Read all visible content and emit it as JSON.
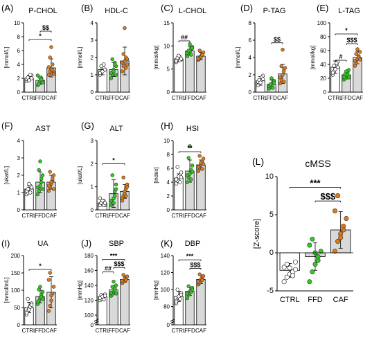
{
  "figure": {
    "background": "#ffffff",
    "group_colors": {
      "CTRL": "#ffffff",
      "FFD": "#2ecc1f",
      "CAF": "#e07b18"
    },
    "bar_fills": {
      "CTRL": "#ffffff",
      "FFD": "#d9d9d9",
      "CAF": "#d9d9d9"
    }
  },
  "chart_data": [
    {
      "type": "bar",
      "panel": "(A)",
      "title": "P-CHOL",
      "ylabel": "[mmol/L]",
      "ylim": [
        0,
        10
      ],
      "yticks": [
        "0",
        "2",
        "4",
        "6",
        "8",
        "10"
      ],
      "categories": [
        "CTRL",
        "FFD",
        "CAF"
      ],
      "values": [
        2.0,
        1.7,
        3.5
      ],
      "error": [
        0.4,
        0.6,
        1.3
      ],
      "points": [
        [
          1.6,
          1.8,
          2.0,
          2.2,
          2.4,
          1.9,
          2.1,
          1.7,
          2.5,
          2.0
        ],
        [
          1.0,
          1.3,
          1.6,
          2.0,
          1.5,
          2.4,
          1.2,
          2.1,
          1.8,
          1.4
        ],
        [
          2.5,
          3.0,
          3.3,
          4.0,
          2.8,
          3.6,
          5.0,
          6.5,
          3.2,
          2.6
        ]
      ],
      "brackets": [
        {
          "from": "CTRL",
          "to": "CAF",
          "level": 7.6,
          "label": "*"
        },
        {
          "from": "FFD",
          "to": "CAF",
          "level": 8.8,
          "label": "$$"
        }
      ]
    },
    {
      "type": "bar",
      "panel": "(B)",
      "title": "HDL-C",
      "ylabel": "[mmol/L]",
      "ylim": [
        0,
        4
      ],
      "yticks": [
        "0",
        "1",
        "2",
        "3",
        "4"
      ],
      "categories": [
        "CTRL",
        "FFD",
        "CAF"
      ],
      "values": [
        1.3,
        1.3,
        1.8
      ],
      "error": [
        0.3,
        0.4,
        0.8
      ],
      "points": [
        [
          1.0,
          1.2,
          1.4,
          1.6,
          1.3,
          1.1,
          1.5,
          1.2,
          1.4,
          1.3
        ],
        [
          0.8,
          1.0,
          1.3,
          1.7,
          1.5,
          1.1,
          1.9,
          1.2,
          1.6,
          1.0
        ],
        [
          1.2,
          1.5,
          1.8,
          2.0,
          1.6,
          1.7,
          2.2,
          3.7,
          1.4,
          1.9
        ]
      ],
      "brackets": []
    },
    {
      "type": "bar",
      "panel": "(C)",
      "title": "L-CHOL",
      "ylabel": "[mmol/kg]",
      "ylim": [
        0,
        15
      ],
      "yticks": [
        "0",
        "5",
        "10",
        "15"
      ],
      "categories": [
        "CTRL",
        "FFD",
        "CAF"
      ],
      "values": [
        7.2,
        8.9,
        7.8
      ],
      "error": [
        0.6,
        0.9,
        0.8
      ],
      "points": [
        [
          6.5,
          7.0,
          7.3,
          7.6,
          7.1,
          6.8,
          7.4,
          7.9,
          6.9,
          7.2
        ],
        [
          7.8,
          8.2,
          8.8,
          9.3,
          9.8,
          8.5,
          9.0,
          10.4,
          8.1,
          9.5
        ],
        [
          7.0,
          7.4,
          7.8,
          8.2,
          8.6,
          7.2,
          9.0,
          7.6,
          8.0
        ]
      ],
      "brackets": [
        {
          "from": "CTRL",
          "to": "FFD",
          "level": 11.1,
          "label": "##"
        }
      ]
    },
    {
      "type": "bar",
      "panel": "(D)",
      "title": "P-TAG",
      "ylabel": "[mmol/L]",
      "ylim": [
        0,
        8
      ],
      "yticks": [
        "0",
        "2",
        "4",
        "6",
        "8"
      ],
      "categories": [
        "CTRL",
        "FFD",
        "CAF"
      ],
      "values": [
        1.3,
        0.9,
        2.1
      ],
      "error": [
        0.5,
        0.5,
        1.1
      ],
      "points": [
        [
          0.8,
          1.0,
          1.3,
          1.6,
          1.9,
          1.2,
          1.4,
          1.1,
          1.7,
          1.5
        ],
        [
          0.4,
          0.6,
          0.8,
          1.0,
          1.3,
          0.7,
          0.9,
          1.6,
          0.5,
          1.1
        ],
        [
          1.0,
          1.4,
          2.0,
          2.4,
          2.8,
          1.7,
          3.0,
          4.9,
          1.2
        ]
      ],
      "brackets": [
        {
          "from": "FFD",
          "to": "CAF",
          "level": 5.7,
          "label": "$$"
        }
      ]
    },
    {
      "type": "bar",
      "panel": "(E)",
      "title": "L-TAG",
      "ylabel": "[mmol/kg]",
      "ylim": [
        0,
        100
      ],
      "yticks": [
        "0",
        "20",
        "40",
        "60",
        "80",
        "100"
      ],
      "categories": [
        "CTRL",
        "FFD",
        "CAF"
      ],
      "values": [
        36,
        25,
        50
      ],
      "error": [
        9,
        6,
        9
      ],
      "points": [
        [
          25,
          30,
          35,
          40,
          44,
          28,
          38,
          33,
          42,
          36
        ],
        [
          18,
          20,
          24,
          28,
          32,
          22,
          26,
          30,
          25,
          21
        ],
        [
          38,
          42,
          48,
          52,
          58,
          45,
          55,
          62,
          50,
          47
        ]
      ],
      "brackets": [
        {
          "from": "CTRL",
          "to": "FFD",
          "level": 46,
          "label": "#"
        },
        {
          "from": "FFD",
          "to": "CAF",
          "level": 70,
          "label": "$$$"
        },
        {
          "from": "CTRL",
          "to": "CAF",
          "level": 84,
          "label": "*"
        }
      ]
    },
    {
      "type": "bar",
      "panel": "(F)",
      "title": "AST",
      "ylabel": "[ukat/L]",
      "ylim": [
        0,
        4
      ],
      "yticks": [
        "0",
        "1",
        "2",
        "3",
        "4"
      ],
      "categories": [
        "CTRL",
        "FFD",
        "CAF"
      ],
      "values": [
        1.2,
        1.6,
        1.6
      ],
      "error": [
        0.2,
        0.6,
        0.4
      ],
      "points": [
        [
          0.9,
          1.0,
          1.2,
          1.4,
          1.3,
          1.1,
          1.2,
          1.5,
          1.0,
          1.3
        ],
        [
          0.9,
          1.1,
          1.4,
          1.8,
          2.0,
          1.3,
          2.3,
          2.8,
          1.6,
          1.2
        ],
        [
          1.1,
          1.3,
          1.5,
          1.7,
          2.0,
          1.4,
          2.2,
          1.6,
          1.8,
          1.2
        ]
      ],
      "brackets": []
    },
    {
      "type": "bar",
      "panel": "(G)",
      "title": "ALT",
      "ylabel": "[ukat/L]",
      "ylim": [
        0,
        3
      ],
      "yticks": [
        "0",
        "1",
        "2",
        "3"
      ],
      "categories": [
        "CTRL",
        "FFD",
        "CAF"
      ],
      "values": [
        0.3,
        0.7,
        0.8
      ],
      "error": [
        0.1,
        0.6,
        0.3
      ],
      "points": [
        [
          0.2,
          0.3,
          0.3,
          0.4,
          0.2,
          0.5,
          0.3,
          0.4,
          0.2,
          0.3
        ],
        [
          0.2,
          0.3,
          0.5,
          0.8,
          1.1,
          0.4,
          1.5,
          0.3,
          0.6,
          0.9
        ],
        [
          0.4,
          0.6,
          0.7,
          0.9,
          1.1,
          0.5,
          1.4,
          0.8,
          0.6,
          1.0
        ]
      ],
      "brackets": [
        {
          "from": "CTRL",
          "to": "CAF",
          "level": 2.0,
          "label": "*"
        }
      ]
    },
    {
      "type": "bar",
      "panel": "(H)",
      "title": "HSI",
      "ylabel": "[index]",
      "ylim": [
        0,
        10
      ],
      "yticks": [
        "0",
        "2",
        "4",
        "6",
        "8",
        "10"
      ],
      "categories": [
        "CTRL",
        "FFD",
        "CAF"
      ],
      "values": [
        4.6,
        5.6,
        6.5
      ],
      "error": [
        0.6,
        1.6,
        0.7
      ],
      "points": [
        [
          3.8,
          4.2,
          4.6,
          5.0,
          5.4,
          4.4,
          6.2,
          4.8,
          4.0,
          4.7
        ],
        [
          4.0,
          4.6,
          5.2,
          5.8,
          6.4,
          5.0,
          7.5,
          9.2,
          4.4,
          5.5
        ],
        [
          5.6,
          6.0,
          6.5,
          7.0,
          7.4,
          6.2,
          7.8,
          6.8,
          5.9,
          6.6
        ]
      ],
      "brackets": [
        {
          "from": "CTRL",
          "to": "CAF",
          "level": 8.4,
          "label": "**"
        }
      ]
    },
    {
      "type": "bar",
      "panel": "(I)",
      "title": "UA",
      "ylabel": "[mmol/mL]",
      "ylim": [
        0,
        200
      ],
      "yticks": [
        "0",
        "50",
        "100",
        "150",
        "200"
      ],
      "categories": [
        "CTRL",
        "FFD",
        "CAF"
      ],
      "values": [
        50,
        82,
        94
      ],
      "error": [
        15,
        18,
        45
      ],
      "points": [
        [
          30,
          40,
          48,
          55,
          62,
          35,
          75,
          44,
          52,
          58
        ],
        [
          60,
          70,
          78,
          86,
          95,
          65,
          102,
          110,
          80,
          74
        ],
        [
          40,
          55,
          70,
          90,
          110,
          130,
          150,
          85
        ]
      ],
      "brackets": [
        {
          "from": "CTRL",
          "to": "CAF",
          "level": 160,
          "label": "*"
        }
      ]
    },
    {
      "type": "bar",
      "panel": "(J)",
      "title": "SBP",
      "ylabel": "[mmHg]",
      "ylim": [
        100,
        180
      ],
      "axis_break": true,
      "yticks": [
        "0",
        "100",
        "120",
        "140",
        "160",
        "180"
      ],
      "categories": [
        "CTRL",
        "FFD",
        "CAF"
      ],
      "values": [
        125,
        134,
        148
      ],
      "error": [
        3,
        6,
        4
      ],
      "points": [
        [
          120,
          122,
          124,
          126,
          128,
          123,
          127,
          125,
          121,
          126
        ],
        [
          126,
          128,
          132,
          136,
          140,
          130,
          138,
          145,
          133,
          129
        ],
        [
          143,
          145,
          148,
          150,
          152,
          146,
          154,
          149,
          147
        ]
      ],
      "brackets": [
        {
          "from": "CTRL",
          "to": "FFD",
          "level": 158,
          "label": "##"
        },
        {
          "from": "FFD",
          "to": "CAF",
          "level": 164,
          "label": "$$$"
        },
        {
          "from": "CTRL",
          "to": "CAF",
          "level": 175,
          "label": "***"
        }
      ]
    },
    {
      "type": "bar",
      "panel": "(K)",
      "title": "DBP",
      "ylabel": "[mmHg]",
      "ylim": [
        70,
        140
      ],
      "axis_break": true,
      "yticks": [
        "0",
        "80",
        "100",
        "120",
        "140"
      ],
      "categories": [
        "CTRL",
        "FFD",
        "CAF"
      ],
      "values": [
        92,
        98,
        112
      ],
      "error": [
        6,
        5,
        5
      ],
      "points": [
        [
          84,
          88,
          90,
          93,
          96,
          86,
          100,
          92,
          89,
          94
        ],
        [
          90,
          94,
          96,
          99,
          102,
          95,
          104,
          98,
          97,
          100
        ],
        [
          106,
          108,
          110,
          113,
          116,
          109,
          118,
          112,
          111
        ]
      ],
      "brackets": [
        {
          "from": "FFD",
          "to": "CAF",
          "level": 125,
          "label": "$$$"
        },
        {
          "from": "CTRL",
          "to": "CAF",
          "level": 135,
          "label": "***"
        }
      ]
    },
    {
      "type": "bar",
      "panel": "(L)",
      "title": "cMSS",
      "ylabel": "[Z-score]",
      "ylim": [
        -5,
        10
      ],
      "yticks": [
        "-5",
        "0",
        "5",
        "10"
      ],
      "categories": [
        "CTRL",
        "FFD",
        "CAF"
      ],
      "values": [
        -2.3,
        -0.5,
        3.0
      ],
      "error": [
        0.9,
        1.8,
        2.4
      ],
      "points": [
        [
          -3.8,
          -3.2,
          -2.8,
          -2.5,
          -2.2,
          -1.9,
          -1.5,
          -2.0,
          -3.0,
          -1.2
        ],
        [
          -3.8,
          -2.5,
          -1.5,
          -0.5,
          0.2,
          1.0,
          1.8,
          0.0,
          -1.0
        ],
        [
          0.2,
          1.5,
          2.5,
          3.5,
          4.5,
          5.5,
          7.5,
          2.0,
          3.0
        ]
      ],
      "brackets": [
        {
          "from": "FFD",
          "to": "CAF",
          "level": 6.8,
          "label": "$$$"
        },
        {
          "from": "CTRL",
          "to": "CAF",
          "level": 8.6,
          "label": "***"
        }
      ]
    }
  ]
}
